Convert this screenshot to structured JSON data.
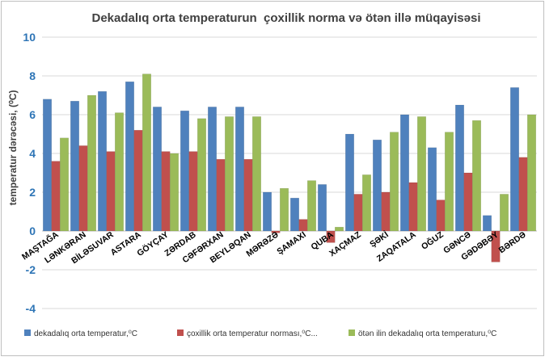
{
  "chart_data": {
    "type": "bar",
    "title": "Dekadalıq orta temperaturun  çoxillik norma və ötən illə müqayisəsi",
    "xlabel": "",
    "ylabel": "temperatur dərəcəsi, (⁰C)",
    "ylim": [
      -4,
      10
    ],
    "yticks": [
      -4,
      -2,
      0,
      2,
      4,
      6,
      8,
      10
    ],
    "grid": true,
    "legend_position": "bottom",
    "categories": [
      "MAŞTAĞA",
      "LƏNKƏRAN",
      "BİLƏSUVAR",
      "ASTARA",
      "GÖYÇAY",
      "ZƏRDAB",
      "CƏFƏRXAN",
      "BEYLƏQAN",
      "MƏRƏZƏ",
      "ŞAMAXI",
      "QUBA",
      "XAÇMAZ",
      "ŞƏKİ",
      "ZAQATALA",
      "OĞUZ",
      "GƏNCƏ",
      "GƏDƏBƏY",
      "BƏRDƏ"
    ],
    "series": [
      {
        "name": "dekadalıq orta temperatur,⁰C",
        "color": "#4F81BD",
        "values": [
          6.8,
          6.7,
          7.2,
          7.7,
          6.4,
          6.2,
          6.4,
          6.4,
          2.0,
          1.7,
          2.4,
          5.0,
          4.7,
          6.0,
          4.3,
          6.5,
          0.8,
          7.4
        ]
      },
      {
        "name": "çoxillik orta temperatur norması,⁰C...",
        "color": "#C0504D",
        "values": [
          3.6,
          4.4,
          4.1,
          5.2,
          4.1,
          4.1,
          3.7,
          3.7,
          -0.1,
          0.6,
          -0.6,
          1.9,
          2.0,
          2.5,
          1.6,
          3.0,
          -1.6,
          3.8
        ]
      },
      {
        "name": "ötən ilin dekadalıq orta temperaturu,⁰C",
        "color": "#9BBB59",
        "values": [
          4.8,
          7.0,
          6.1,
          8.1,
          4.0,
          5.8,
          5.9,
          5.9,
          2.2,
          2.6,
          0.2,
          2.9,
          5.1,
          5.9,
          5.1,
          5.7,
          1.9,
          6.0
        ]
      }
    ]
  }
}
